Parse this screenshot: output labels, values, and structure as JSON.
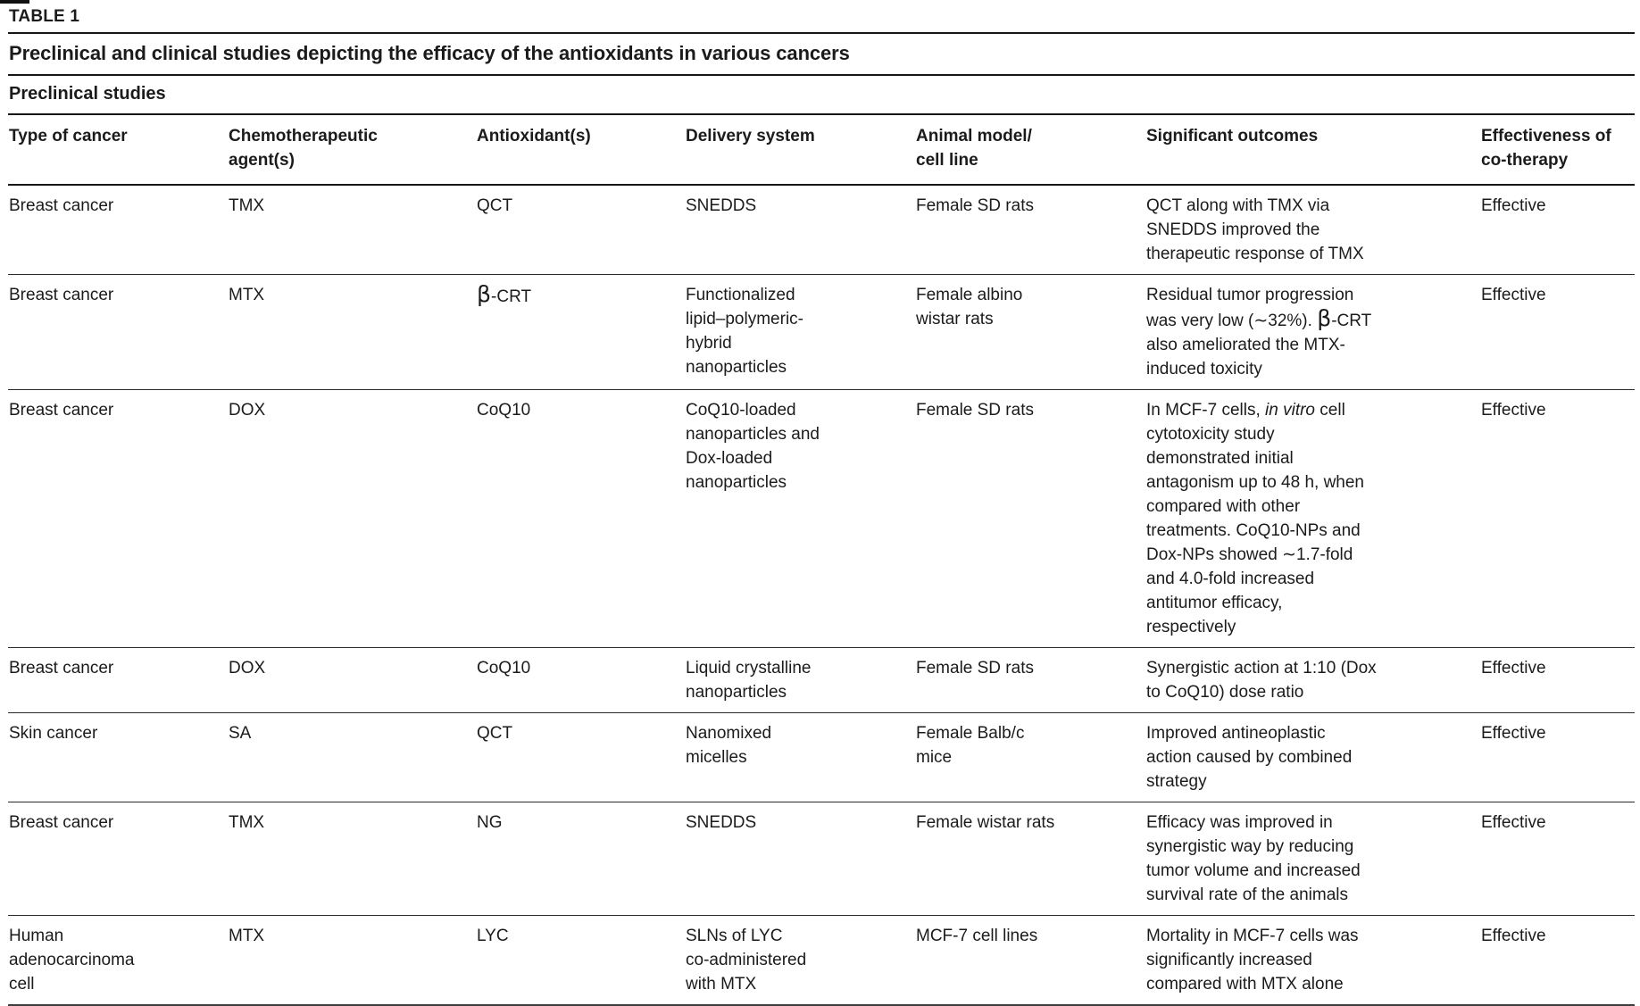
{
  "table_label": "TABLE 1",
  "title": "Preclinical and clinical studies depicting the efficacy of the antioxidants in various cancers",
  "section_header": "Preclinical studies",
  "columns": [
    "Type of cancer",
    "Chemotherapeutic\nagent(s)",
    "Antioxidant(s)",
    "Delivery system",
    "Animal model/\ncell line",
    "Significant outcomes",
    "Effectiveness of\nco-therapy"
  ],
  "rows": [
    {
      "cancer": "Breast cancer",
      "agent": "TMX",
      "antioxidant": "QCT",
      "delivery": "SNEDDS",
      "model": "Female SD rats",
      "outcome": "QCT along with TMX via\nSNEDDS improved the\ntherapeutic response of TMX",
      "effectiveness": "Effective"
    },
    {
      "cancer": "Breast cancer",
      "agent": "MTX",
      "antioxidant_rich": [
        {
          "text": "β",
          "style": "beta"
        },
        {
          "text": "-CRT"
        }
      ],
      "delivery": "Functionalized\nlipid–polymeric-\nhybrid\nnanoparticles",
      "model": "Female albino\nwistar rats",
      "outcome_rich": [
        {
          "text": "Residual tumor progression\nwas very low (∼32%). "
        },
        {
          "text": "β",
          "style": "beta"
        },
        {
          "text": "-CRT\nalso ameliorated the MTX-\ninduced toxicity"
        }
      ],
      "effectiveness": "Effective"
    },
    {
      "cancer": "Breast cancer",
      "agent": "DOX",
      "antioxidant": "CoQ10",
      "delivery": "CoQ10-loaded\nnanoparticles and\nDox-loaded\nnanoparticles",
      "model": "Female SD rats",
      "outcome_rich": [
        {
          "text": "In MCF-7 cells, "
        },
        {
          "text": "in vitro",
          "style": "it"
        },
        {
          "text": " cell\ncytotoxicity study\ndemonstrated initial\nantagonism up to 48 h, when\ncompared with other\ntreatments. CoQ10-NPs and\nDox-NPs showed ∼1.7-fold\nand 4.0-fold increased\nantitumor efficacy,\nrespectively"
        }
      ],
      "effectiveness": "Effective"
    },
    {
      "cancer": "Breast cancer",
      "agent": "DOX",
      "antioxidant": "CoQ10",
      "delivery": "Liquid crystalline\nnanoparticles",
      "model": "Female SD rats",
      "outcome": "Synergistic action at 1:10 (Dox\nto CoQ10) dose ratio",
      "effectiveness": "Effective"
    },
    {
      "cancer": "Skin cancer",
      "agent": "SA",
      "antioxidant": "QCT",
      "delivery": "Nanomixed\nmicelles",
      "model": "Female Balb/c\nmice",
      "outcome": "Improved antineoplastic\naction caused by combined\nstrategy",
      "effectiveness": "Effective"
    },
    {
      "cancer": "Breast cancer",
      "agent": "TMX",
      "antioxidant": "NG",
      "delivery": "SNEDDS",
      "model": "Female wistar rats",
      "outcome": "Efficacy was improved in\nsynergistic way by reducing\ntumor volume and increased\nsurvival rate of the animals",
      "effectiveness": "Effective"
    },
    {
      "cancer": "Human\nadenocarcinoma\ncell",
      "agent": "MTX",
      "antioxidant": "LYC",
      "delivery": "SLNs of LYC\nco-administered\nwith MTX",
      "model": "MCF-7 cell lines",
      "outcome": "Mortality in MCF-7 cells was\nsignificantly increased\ncompared with MTX alone",
      "effectiveness": "Effective"
    }
  ]
}
